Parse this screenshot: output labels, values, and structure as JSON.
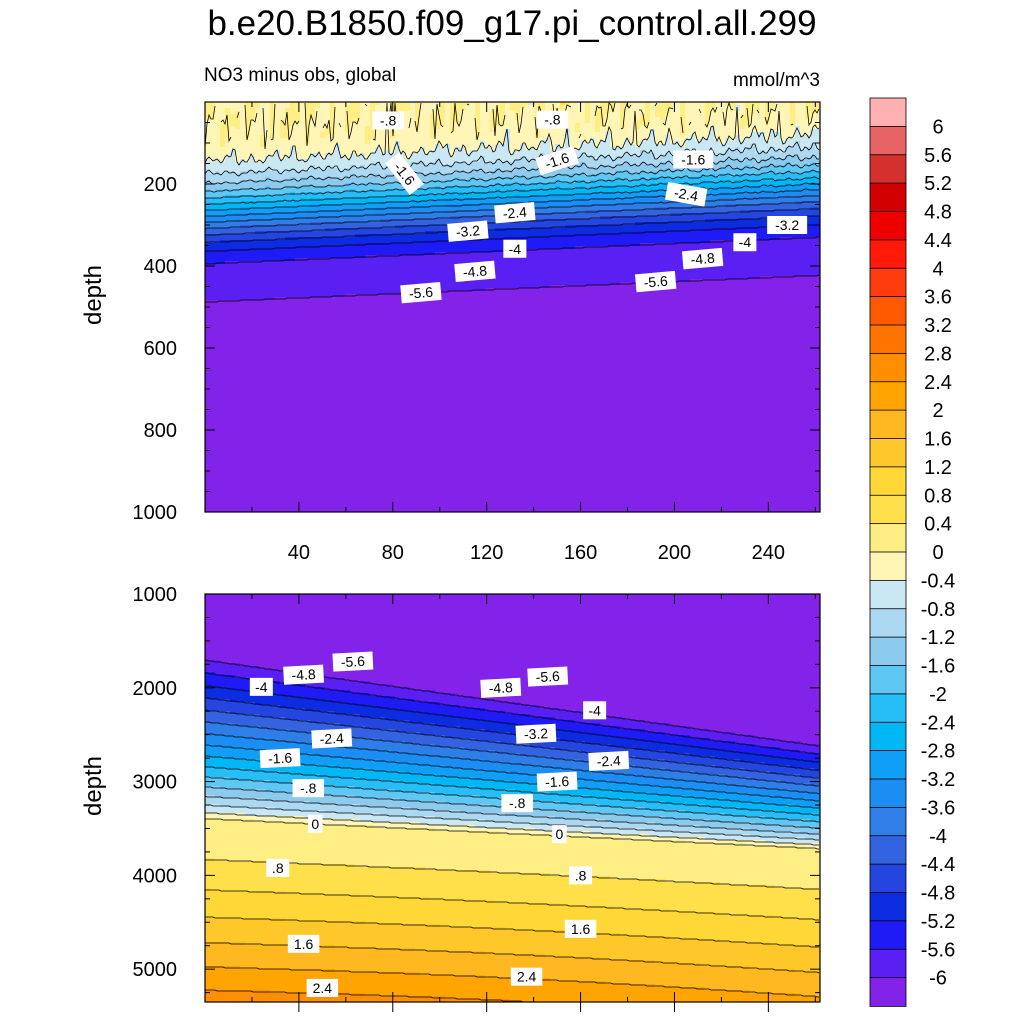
{
  "title": "b.e20.B1850.f09_g17.pi_control.all.299",
  "left_string": "NO3 minus obs, global",
  "units": "mmol/m^3",
  "colors": {
    "line": "#000000",
    "levels_fill": [
      "#8322e9",
      "#5a1ff2",
      "#1e1bf6",
      "#0d2be0",
      "#2445e0",
      "#3363e0",
      "#2f7ee8",
      "#1c8df3",
      "#0f9ff7",
      "#00b7f5",
      "#27bef8",
      "#5ec7f4",
      "#8ccbee",
      "#acd8f1",
      "#c9e8f4",
      "#fff5b6",
      "#ffee84",
      "#ffe04b",
      "#ffd838",
      "#ffc82a",
      "#ffb81f",
      "#ffa400",
      "#ff8f00",
      "#ff7500",
      "#ff5a00",
      "#ff3c0d",
      "#ff1a0a",
      "#ef0000",
      "#d20000",
      "#d43030",
      "#e86464",
      "#ffb0b0"
    ]
  },
  "chart_data": [
    {
      "type": "contour",
      "panel": "top",
      "xlabel": "",
      "ylabel": "depth",
      "xlim": [
        0,
        262
      ],
      "ylim": [
        1000,
        0
      ],
      "xticks": [
        40,
        80,
        120,
        160,
        200,
        240
      ],
      "yticks": [
        200,
        400,
        600,
        800,
        1000
      ],
      "contour_labels": [
        {
          "text": "-.8",
          "x": 78,
          "y": 45,
          "angle": 0
        },
        {
          "text": "-.8",
          "x": 148,
          "y": 43,
          "angle": 0
        },
        {
          "text": "-1.6",
          "x": 85,
          "y": 175,
          "angle": 52
        },
        {
          "text": "-1.6",
          "x": 150,
          "y": 143,
          "angle": -18
        },
        {
          "text": "-1.6",
          "x": 208,
          "y": 140,
          "angle": 0
        },
        {
          "text": "-2.4",
          "x": 132,
          "y": 270,
          "angle": -5
        },
        {
          "text": "-2.4",
          "x": 205,
          "y": 225,
          "angle": 10
        },
        {
          "text": "-3.2",
          "x": 112,
          "y": 315,
          "angle": -5
        },
        {
          "text": "-3.2",
          "x": 248,
          "y": 300,
          "angle": 0
        },
        {
          "text": "-4",
          "x": 132,
          "y": 358,
          "angle": 0
        },
        {
          "text": "-4",
          "x": 230,
          "y": 342,
          "angle": 0
        },
        {
          "text": "-4.8",
          "x": 115,
          "y": 413,
          "angle": -5
        },
        {
          "text": "-4.8",
          "x": 212,
          "y": 382,
          "angle": -5
        },
        {
          "text": "-5.6",
          "x": 92,
          "y": 465,
          "angle": -5
        },
        {
          "text": "-5.6",
          "x": 192,
          "y": 438,
          "angle": -5
        }
      ]
    },
    {
      "type": "contour",
      "panel": "bottom",
      "xlabel": "",
      "ylabel": "depth",
      "xlim": [
        0,
        262
      ],
      "ylim": [
        5350,
        1000
      ],
      "xticks": [],
      "yticks": [
        1000,
        2000,
        3000,
        4000,
        5000
      ],
      "contour_labels": [
        {
          "text": "-5.6",
          "x": 63,
          "y": 1720,
          "angle": -3
        },
        {
          "text": "-5.6",
          "x": 146,
          "y": 1880,
          "angle": -3
        },
        {
          "text": "-4.8",
          "x": 42,
          "y": 1860,
          "angle": -3
        },
        {
          "text": "-4.8",
          "x": 126,
          "y": 2000,
          "angle": -3
        },
        {
          "text": "-4",
          "x": 24,
          "y": 1990,
          "angle": 0
        },
        {
          "text": "-4",
          "x": 166,
          "y": 2240,
          "angle": 0
        },
        {
          "text": "-3.2",
          "x": 141,
          "y": 2490,
          "angle": -3
        },
        {
          "text": "-2.4",
          "x": 54,
          "y": 2540,
          "angle": -3
        },
        {
          "text": "-2.4",
          "x": 172,
          "y": 2780,
          "angle": -3
        },
        {
          "text": "-1.6",
          "x": 32,
          "y": 2750,
          "angle": -3
        },
        {
          "text": "-1.6",
          "x": 150,
          "y": 3000,
          "angle": -3
        },
        {
          "text": "-.8",
          "x": 44,
          "y": 3070,
          "angle": 0
        },
        {
          "text": "-.8",
          "x": 133,
          "y": 3230,
          "angle": 0
        },
        {
          "text": "0",
          "x": 47,
          "y": 3450,
          "angle": 0
        },
        {
          "text": "0",
          "x": 151,
          "y": 3560,
          "angle": 0
        },
        {
          "text": ".8",
          "x": 31,
          "y": 3920,
          "angle": 0
        },
        {
          "text": ".8",
          "x": 160,
          "y": 4000,
          "angle": 0
        },
        {
          "text": "1.6",
          "x": 42,
          "y": 4730,
          "angle": 0
        },
        {
          "text": "1.6",
          "x": 160,
          "y": 4570,
          "angle": 0
        },
        {
          "text": "2.4",
          "x": 50,
          "y": 5200,
          "angle": 0
        },
        {
          "text": "2.4",
          "x": 137,
          "y": 5080,
          "angle": 0
        }
      ]
    }
  ],
  "colorbar": {
    "labels": [
      "6",
      "5.6",
      "5.2",
      "4.8",
      "4.4",
      "4",
      "3.6",
      "3.2",
      "2.8",
      "2.4",
      "2",
      "1.6",
      "1.2",
      "0.8",
      "0.4",
      "0",
      "-0.4",
      "-0.8",
      "-1.2",
      "-1.6",
      "-2",
      "-2.4",
      "-2.8",
      "-3.2",
      "-3.6",
      "-4",
      "-4.4",
      "-4.8",
      "-5.2",
      "-5.6",
      "-6"
    ]
  }
}
